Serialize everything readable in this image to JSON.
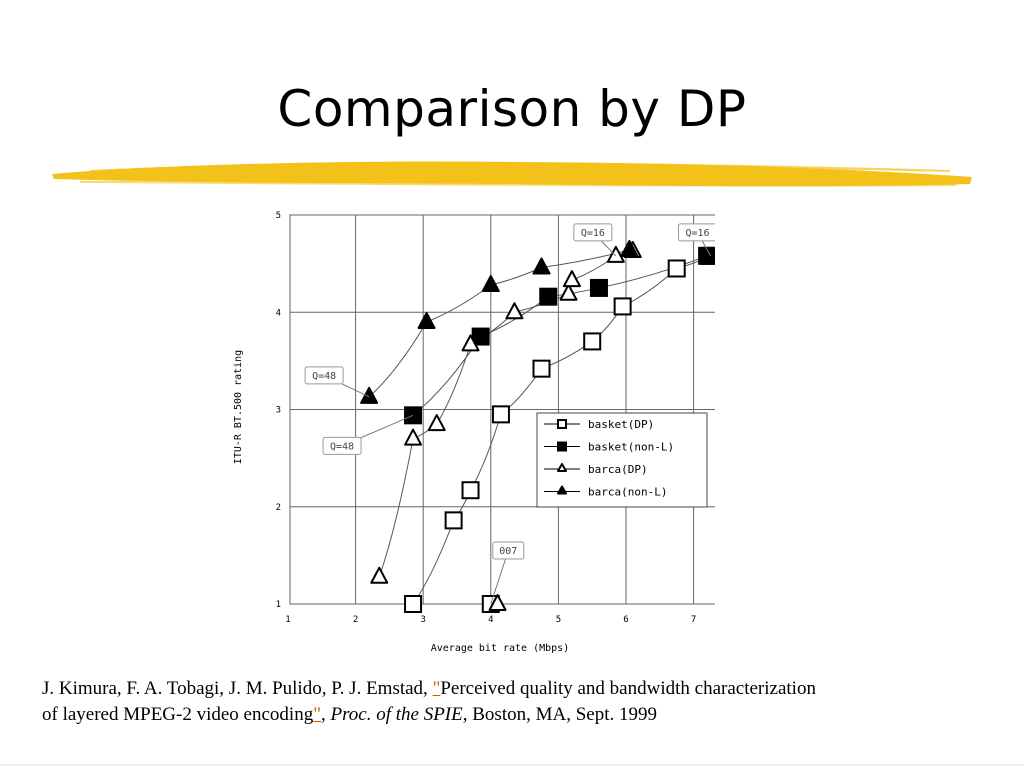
{
  "slide": {
    "title": "Comparison by DP"
  },
  "citation": {
    "authors": "J. Kimura, F. A. Tobagi, J. M. Pulido, P. J. Emstad, ",
    "quote_open": "\"",
    "paper_title_part1": "Perceived quality and bandwidth characterization",
    "paper_title_part2": "of layered MPEG-2 video encoding",
    "quote_close": "\"",
    "sep": ", ",
    "venue": "Proc. of the SPIE",
    "rest": ", Boston, MA, Sept. 1999"
  },
  "colors": {
    "brush": "#f2c21a",
    "grid": "#666666",
    "marker": "#000000"
  },
  "chart_data": {
    "type": "line",
    "xlabel": "Average bit rate (Mbps)",
    "ylabel": "ITU-R BT.500 rating",
    "xlim": [
      1,
      7.5
    ],
    "ylim": [
      1,
      5
    ],
    "xticks": [
      1,
      2,
      3,
      4,
      5,
      6,
      7
    ],
    "yticks": [
      1,
      2,
      3,
      4,
      5
    ],
    "grid": true,
    "legend_position": "right-middle",
    "series": [
      {
        "name": "basket(DP)",
        "marker": "square-open",
        "x": [
          2.85,
          3.45,
          3.7,
          4.15,
          4.75,
          5.5,
          5.95,
          6.75,
          7.25
        ],
        "y": [
          1.0,
          1.86,
          2.17,
          2.95,
          3.42,
          3.7,
          4.06,
          4.45,
          4.58
        ]
      },
      {
        "name": "basket(non-L)",
        "marker": "square-filled",
        "x": [
          2.85,
          3.85,
          4.85,
          5.6,
          7.2
        ],
        "y": [
          2.94,
          3.75,
          4.16,
          4.25,
          4.58
        ]
      },
      {
        "name": "barca(DP)",
        "marker": "triangle-open",
        "x": [
          2.35,
          2.85,
          3.2,
          3.7,
          4.35,
          5.15,
          5.2,
          5.85,
          6.1
        ],
        "y": [
          1.28,
          2.7,
          2.85,
          3.67,
          4.0,
          4.19,
          4.33,
          4.58,
          4.63
        ]
      },
      {
        "name": "barca(non-L)",
        "marker": "triangle-filled",
        "x": [
          2.2,
          3.05,
          4.0,
          4.75,
          6.05
        ],
        "y": [
          3.13,
          3.9,
          4.28,
          4.46,
          4.64
        ]
      },
      {
        "name": "",
        "marker": "square-open",
        "connected": false,
        "x": [
          4.0
        ],
        "y": [
          1.0
        ]
      },
      {
        "name": "",
        "marker": "triangle-open",
        "connected": false,
        "x": [
          4.1
        ],
        "y": [
          1.0
        ]
      }
    ],
    "annotations": [
      {
        "text": "Q=16",
        "x": 5.85,
        "y": 4.58
      },
      {
        "text": "Q=16",
        "x": 7.25,
        "y": 4.58
      },
      {
        "text": "Q=48",
        "x": 2.2,
        "y": 3.13
      },
      {
        "text": "Q=48",
        "x": 2.85,
        "y": 2.94
      },
      {
        "text": "007",
        "x": 4.0,
        "y": 1.0
      }
    ]
  }
}
